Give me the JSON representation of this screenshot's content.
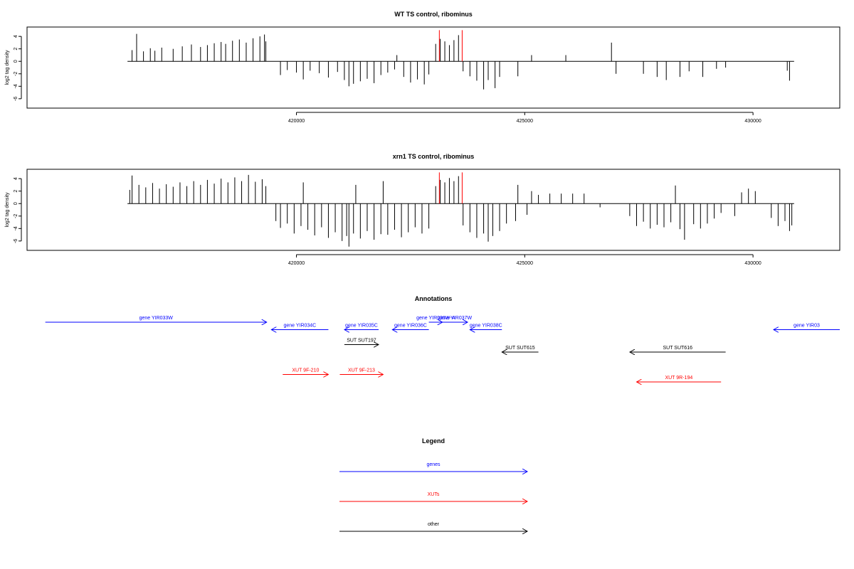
{
  "chart_data": [
    {
      "type": "bar",
      "title": "WT TS control, ribominus",
      "xlabel": "",
      "ylabel": "log2 tag density",
      "xlim": [
        414100,
        431900
      ],
      "ylim": [
        -7.5,
        5.5
      ],
      "x_ticks": [
        "420000",
        "425000",
        "430000"
      ],
      "y_ticks": [
        "4",
        "2",
        "0",
        "-2",
        "-4",
        "-6"
      ],
      "grid": false,
      "series": [
        {
          "color": "#000000",
          "bars": [
            [
              416400,
              1.8
            ],
            [
              416500,
              4.4
            ],
            [
              416650,
              1.6
            ],
            [
              416800,
              2.1
            ],
            [
              416900,
              1.7
            ],
            [
              417050,
              2.2
            ],
            [
              417300,
              2.0
            ],
            [
              417500,
              2.4
            ],
            [
              417700,
              2.7
            ],
            [
              417900,
              2.3
            ],
            [
              418050,
              2.6
            ],
            [
              418200,
              2.9
            ],
            [
              418350,
              3.1
            ],
            [
              418450,
              2.8
            ],
            [
              418600,
              3.3
            ],
            [
              418750,
              3.5
            ],
            [
              418900,
              3.0
            ],
            [
              419050,
              3.7
            ],
            [
              419200,
              4.0
            ],
            [
              419300,
              4.3
            ],
            [
              419330,
              3.2
            ],
            [
              419650,
              -2.2
            ],
            [
              419800,
              -1.4
            ],
            [
              420000,
              -1.8
            ],
            [
              420150,
              -2.9
            ],
            [
              420300,
              -1.5
            ],
            [
              420500,
              -1.9
            ],
            [
              420700,
              -2.6
            ],
            [
              420900,
              -1.7
            ],
            [
              421050,
              -3.0
            ],
            [
              421150,
              -4.0
            ],
            [
              421250,
              -3.6
            ],
            [
              421400,
              -3.2
            ],
            [
              421550,
              -2.8
            ],
            [
              421700,
              -3.5
            ],
            [
              421850,
              -2.2
            ],
            [
              422000,
              -1.8
            ],
            [
              422150,
              -1.3
            ],
            [
              422200,
              1.0
            ],
            [
              422350,
              -2.5
            ],
            [
              422500,
              -3.4
            ],
            [
              422650,
              -2.9
            ],
            [
              422800,
              -3.7
            ],
            [
              422900,
              -2.1
            ],
            [
              423050,
              2.8
            ],
            [
              423150,
              3.6
            ],
            [
              423250,
              3.2
            ],
            [
              423350,
              2.6
            ],
            [
              423450,
              3.4
            ],
            [
              423550,
              4.2
            ],
            [
              423650,
              -1.6
            ],
            [
              423800,
              -2.4
            ],
            [
              423950,
              -3.1
            ],
            [
              424100,
              -4.5
            ],
            [
              424200,
              -3.0
            ],
            [
              424350,
              -4.3
            ],
            [
              424450,
              -2.5
            ],
            [
              424850,
              -2.4
            ],
            [
              425150,
              1.0
            ],
            [
              425900,
              1.0
            ],
            [
              426900,
              3.0
            ],
            [
              427000,
              -2.0
            ],
            [
              427600,
              -2.0
            ],
            [
              427900,
              -2.5
            ],
            [
              428100,
              -3.0
            ],
            [
              428400,
              -2.5
            ],
            [
              428600,
              -1.6
            ],
            [
              428900,
              -2.5
            ],
            [
              429200,
              -1.2
            ],
            [
              429400,
              -1.0
            ],
            [
              430750,
              -1.5
            ],
            [
              430800,
              -3.1
            ]
          ]
        },
        {
          "color": "#ff0000",
          "bars": [
            [
              423130,
              5.0
            ],
            [
              423630,
              5.0
            ]
          ]
        }
      ]
    },
    {
      "type": "bar",
      "title": "xrn1 TS control, ribominus",
      "xlabel": "",
      "ylabel": "log2 tag density",
      "xlim": [
        414100,
        431900
      ],
      "ylim": [
        -7.5,
        5.5
      ],
      "x_ticks": [
        "420000",
        "425000",
        "430000"
      ],
      "y_ticks": [
        "4",
        "2",
        "0",
        "-2",
        "-4",
        "-6"
      ],
      "grid": false,
      "series": [
        {
          "color": "#000000",
          "bars": [
            [
              416350,
              2.2
            ],
            [
              416400,
              4.5
            ],
            [
              416550,
              3.0
            ],
            [
              416700,
              2.6
            ],
            [
              416850,
              3.3
            ],
            [
              417000,
              2.4
            ],
            [
              417150,
              3.1
            ],
            [
              417300,
              2.7
            ],
            [
              417450,
              3.4
            ],
            [
              417600,
              2.8
            ],
            [
              417750,
              3.6
            ],
            [
              417900,
              3.0
            ],
            [
              418050,
              3.8
            ],
            [
              418200,
              3.2
            ],
            [
              418350,
              4.0
            ],
            [
              418500,
              3.4
            ],
            [
              418650,
              4.2
            ],
            [
              418800,
              3.6
            ],
            [
              418950,
              4.6
            ],
            [
              419100,
              3.5
            ],
            [
              419250,
              3.9
            ],
            [
              419330,
              2.8
            ],
            [
              419550,
              -2.8
            ],
            [
              419650,
              -3.9
            ],
            [
              419800,
              -3.2
            ],
            [
              419950,
              -4.8
            ],
            [
              420100,
              -3.6
            ],
            [
              420150,
              3.4
            ],
            [
              420250,
              -4.2
            ],
            [
              420400,
              -5.1
            ],
            [
              420550,
              -3.8
            ],
            [
              420700,
              -5.5
            ],
            [
              420850,
              -4.6
            ],
            [
              421000,
              -6.0
            ],
            [
              421100,
              -5.2
            ],
            [
              421150,
              -6.9
            ],
            [
              421250,
              -4.8
            ],
            [
              421300,
              3.0
            ],
            [
              421400,
              -5.6
            ],
            [
              421550,
              -4.4
            ],
            [
              421700,
              -5.8
            ],
            [
              421850,
              -4.9
            ],
            [
              421900,
              3.6
            ],
            [
              422000,
              -5.0
            ],
            [
              422150,
              -4.2
            ],
            [
              422300,
              -5.4
            ],
            [
              422450,
              -4.6
            ],
            [
              422600,
              -3.8
            ],
            [
              422750,
              -4.8
            ],
            [
              422900,
              -4.0
            ],
            [
              423050,
              2.8
            ],
            [
              423150,
              3.8
            ],
            [
              423250,
              3.4
            ],
            [
              423350,
              4.1
            ],
            [
              423450,
              3.6
            ],
            [
              423550,
              4.4
            ],
            [
              423650,
              -3.5
            ],
            [
              423800,
              -4.6
            ],
            [
              423950,
              -5.5
            ],
            [
              424100,
              -4.8
            ],
            [
              424200,
              -6.1
            ],
            [
              424300,
              -5.2
            ],
            [
              424450,
              -4.4
            ],
            [
              424600,
              -3.2
            ],
            [
              424800,
              -2.8
            ],
            [
              424850,
              3.0
            ],
            [
              425050,
              -1.8
            ],
            [
              425150,
              2.0
            ],
            [
              425300,
              1.4
            ],
            [
              425550,
              1.6
            ],
            [
              425800,
              1.6
            ],
            [
              426050,
              1.6
            ],
            [
              426300,
              1.6
            ],
            [
              426650,
              -0.6
            ],
            [
              427300,
              -2.0
            ],
            [
              427450,
              -3.6
            ],
            [
              427600,
              -2.9
            ],
            [
              427750,
              -4.0
            ],
            [
              427900,
              -3.4
            ],
            [
              428050,
              -3.8
            ],
            [
              428200,
              -3.0
            ],
            [
              428300,
              2.9
            ],
            [
              428400,
              -4.1
            ],
            [
              428500,
              -5.8
            ],
            [
              428700,
              -3.3
            ],
            [
              428850,
              -4.0
            ],
            [
              429000,
              -3.2
            ],
            [
              429150,
              -2.4
            ],
            [
              429300,
              -1.5
            ],
            [
              429600,
              -2.0
            ],
            [
              429750,
              1.8
            ],
            [
              429900,
              2.4
            ],
            [
              430050,
              2.0
            ],
            [
              430400,
              -2.3
            ],
            [
              430550,
              -3.6
            ],
            [
              430700,
              -2.8
            ],
            [
              430800,
              -4.4
            ],
            [
              430850,
              -3.5
            ]
          ]
        },
        {
          "color": "#ff0000",
          "bars": [
            [
              423130,
              5.0
            ],
            [
              423630,
              5.0
            ]
          ]
        }
      ]
    }
  ],
  "annotations": {
    "title": "Annotations",
    "colors": {
      "gene": "#0000ff",
      "xut": "#ff0000",
      "other": "#000000"
    },
    "features": [
      {
        "label": "gene YIR033W",
        "kind": "gene",
        "start": 414500,
        "end": 419350,
        "strand": "+",
        "row": 0
      },
      {
        "label": "gene YIR034C",
        "kind": "gene",
        "start": 419450,
        "end": 420700,
        "strand": "-",
        "row": 1
      },
      {
        "label": "gene YIR035C",
        "kind": "gene",
        "start": 421050,
        "end": 421800,
        "strand": "-",
        "row": 1
      },
      {
        "label": "gene YIR036C",
        "kind": "gene",
        "start": 422100,
        "end": 422900,
        "strand": "-",
        "row": 1
      },
      {
        "label": "gene YIR036W-A",
        "kind": "gene",
        "start": 422900,
        "end": 423200,
        "strand": "+",
        "row": 0
      },
      {
        "label": "gene YIR037W",
        "kind": "gene",
        "start": 423200,
        "end": 423750,
        "strand": "+",
        "row": 0
      },
      {
        "label": "gene YIR038C",
        "kind": "gene",
        "start": 423800,
        "end": 424500,
        "strand": "-",
        "row": 1
      },
      {
        "label": "gene YIR03",
        "kind": "gene",
        "start": 430450,
        "end": 431900,
        "strand": "-",
        "row": 1
      },
      {
        "label": "SUT SUT197",
        "kind": "other",
        "start": 421050,
        "end": 421800,
        "strand": "+",
        "row": 3
      },
      {
        "label": "SUT SUT615",
        "kind": "other",
        "start": 424500,
        "end": 425300,
        "strand": "-",
        "row": 4
      },
      {
        "label": "SUT SUT616",
        "kind": "other",
        "start": 427300,
        "end": 429400,
        "strand": "-",
        "row": 4
      },
      {
        "label": "XUT 9F-210",
        "kind": "xut",
        "start": 419700,
        "end": 420700,
        "strand": "+",
        "row": 7
      },
      {
        "label": "XUT 9F-213",
        "kind": "xut",
        "start": 420950,
        "end": 421900,
        "strand": "+",
        "row": 7
      },
      {
        "label": "XUT 9R-194",
        "kind": "xut",
        "start": 427450,
        "end": 429300,
        "strand": "-",
        "row": 8
      }
    ]
  },
  "legend": {
    "title": "Legend",
    "items": [
      {
        "label": "genes",
        "color": "#0000ff"
      },
      {
        "label": "XUTs",
        "color": "#ff0000"
      },
      {
        "label": "other",
        "color": "#000000"
      }
    ]
  }
}
